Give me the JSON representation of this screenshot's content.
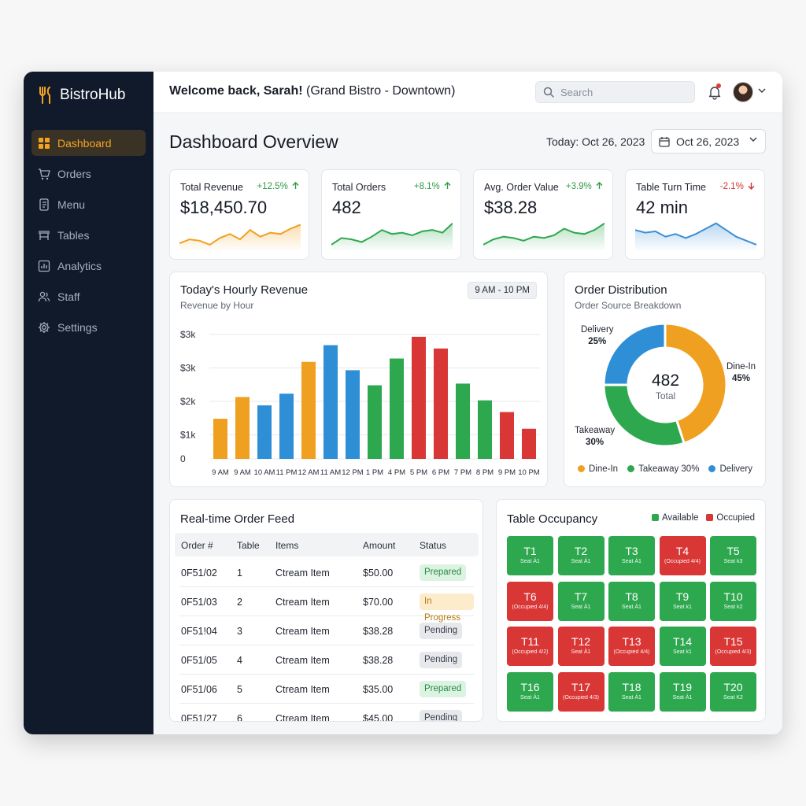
{
  "app": {
    "name": "BistroHub"
  },
  "sidebar": {
    "items": [
      {
        "label": "Dashboard",
        "icon": "dashboard-icon",
        "active": true
      },
      {
        "label": "Orders",
        "icon": "cart-icon",
        "active": false
      },
      {
        "label": "Menu",
        "icon": "menu-book-icon",
        "active": false
      },
      {
        "label": "Tables",
        "icon": "table-icon",
        "active": false
      },
      {
        "label": "Analytics",
        "icon": "analytics-icon",
        "active": false
      },
      {
        "label": "Staff",
        "icon": "staff-icon",
        "active": false
      },
      {
        "label": "Settings",
        "icon": "gear-icon",
        "active": false
      }
    ]
  },
  "header": {
    "welcome_bold": "Welcome back, Sarah!",
    "welcome_rest": " (Grand Bistro - Downtown)",
    "search_placeholder": "Search"
  },
  "page": {
    "title": "Dashboard Overview",
    "today_label": "Today: Oct 26, 2023",
    "date_value": "Oct 26, 2023"
  },
  "kpis": [
    {
      "title": "Total Revenue",
      "value": "$18,450.70",
      "delta": "+12.5%",
      "trend": "up",
      "color": "#f0a020"
    },
    {
      "title": "Total Orders",
      "value": "482",
      "delta": "+8.1%",
      "trend": "up",
      "color": "#2ea84f"
    },
    {
      "title": "Avg. Order Value",
      "value": "$38.28",
      "delta": "+3.9%",
      "trend": "up",
      "color": "#2ea84f"
    },
    {
      "title": "Table Turn Time",
      "value": "42 min",
      "delta": "-2.1%",
      "trend": "down",
      "color": "#3b8fd4"
    }
  ],
  "revenue": {
    "title": "Today's Hourly Revenue",
    "subtitle": "Revenue by Hour",
    "range": "9 AM - 10 PM"
  },
  "distribution": {
    "title": "Order Distribution",
    "subtitle": "Order Source Breakdown",
    "center_value": "482",
    "center_label": "Total",
    "labels": {
      "delivery_name": "Delivery",
      "delivery_pct": "25%",
      "dinein_name": "Dine-In",
      "dinein_pct": "45%",
      "takeaway_name": "Takeaway",
      "takeaway_pct": "30%"
    },
    "legend": [
      "Dine-In",
      "Takeaway 30%",
      "Delivery"
    ]
  },
  "chart_data": [
    {
      "type": "bar",
      "title": "Today's Hourly Revenue",
      "subtitle": "Revenue by Hour",
      "categories": [
        "9 AM",
        "9 AM",
        "10 AM",
        "11 PM",
        "12 AM",
        "11 AM",
        "12 PM",
        "1 PM",
        "4 PM",
        "5 PM",
        "6 PM",
        "7 PM",
        "8 PM",
        "9 PM",
        "10 PM"
      ],
      "values": [
        1200,
        1850,
        1600,
        1950,
        2900,
        3400,
        2650,
        2200,
        3000,
        3650,
        3300,
        2250,
        1750,
        1400,
        900
      ],
      "colors": [
        "#f0a020",
        "#f0a020",
        "#2f8fd6",
        "#2f8fd6",
        "#f0a020",
        "#2f8fd6",
        "#2f8fd6",
        "#2ea84f",
        "#2ea84f",
        "#d93636",
        "#d93636",
        "#2ea84f",
        "#2ea84f",
        "#d93636",
        "#d93636"
      ],
      "y_ticks": [
        "$3k",
        "$3k",
        "$2k",
        "$1k",
        "0"
      ],
      "ylim": [
        0,
        4000
      ],
      "grid": true
    },
    {
      "type": "pie",
      "title": "Order Distribution",
      "subtitle": "Order Source Breakdown",
      "categories": [
        "Dine-In",
        "Takeaway",
        "Delivery"
      ],
      "values": [
        45,
        30,
        25
      ],
      "colors": [
        "#f0a020",
        "#2ea84f",
        "#2f8fd6"
      ]
    }
  ],
  "orders": {
    "title": "Real-time Order Feed",
    "columns": [
      "Order #",
      "Table",
      "Items",
      "Amount",
      "Status"
    ],
    "rows": [
      {
        "order": "0F51/02",
        "table": "1",
        "items": "Ctream Item",
        "amount": "$50.00",
        "status": "Prepared"
      },
      {
        "order": "0F51/03",
        "table": "2",
        "items": "Ctream Item",
        "amount": "$70.00",
        "status": "In Progress"
      },
      {
        "order": "0F51!04",
        "table": "3",
        "items": "Ctream Item",
        "amount": "$38.28",
        "status": "Pending"
      },
      {
        "order": "0F51/05",
        "table": "4",
        "items": "Ctream Item",
        "amount": "$38.28",
        "status": "Pending"
      },
      {
        "order": "0F51/06",
        "table": "5",
        "items": "Ctream Item",
        "amount": "$35.00",
        "status": "Prepared"
      },
      {
        "order": "0F51/27",
        "table": "6",
        "items": "Ctream Item",
        "amount": "$45.00",
        "status": "Pending"
      }
    ],
    "status_colors": {
      "Prepared": {
        "bg": "#dcf3e2",
        "fg": "#2a8a44"
      },
      "In Progress": {
        "bg": "#fdeccb",
        "fg": "#b8790e"
      },
      "Pending": {
        "bg": "#e6e8ec",
        "fg": "#3a3f4a"
      }
    }
  },
  "occupancy": {
    "title": "Table Occupancy",
    "legend_available": "Available",
    "legend_occupied": "Occupied",
    "color_available": "#2ea84f",
    "color_occupied": "#d93636",
    "tables": [
      {
        "name": "T1",
        "sub": "Seat Á1",
        "state": "available"
      },
      {
        "name": "T2",
        "sub": "Seat Á1",
        "state": "available"
      },
      {
        "name": "T3",
        "sub": "Seat Á1",
        "state": "available"
      },
      {
        "name": "T4",
        "sub": "(Occupied 4/4)",
        "state": "occupied"
      },
      {
        "name": "T5",
        "sub": "Seat k3",
        "state": "available"
      },
      {
        "name": "T6",
        "sub": "(Occupied 4/4)",
        "state": "occupied"
      },
      {
        "name": "T7",
        "sub": "Seat Á1",
        "state": "available"
      },
      {
        "name": "T8",
        "sub": "Seat Á1",
        "state": "available"
      },
      {
        "name": "T9",
        "sub": "Seat k1",
        "state": "available"
      },
      {
        "name": "T10",
        "sub": "Seat k2",
        "state": "available"
      },
      {
        "name": "T11",
        "sub": "(Occupied 4/2)",
        "state": "occupied"
      },
      {
        "name": "T12",
        "sub": "Seat Á1",
        "state": "occupied"
      },
      {
        "name": "T13",
        "sub": "(Occupied 4/4)",
        "state": "occupied"
      },
      {
        "name": "T14",
        "sub": "Seat k1",
        "state": "available"
      },
      {
        "name": "T15",
        "sub": "(Occupied 4/3)",
        "state": "occupied"
      },
      {
        "name": "T16",
        "sub": "Seat Á1",
        "state": "available"
      },
      {
        "name": "T17",
        "sub": "(Occupied 4/3)",
        "state": "occupied"
      },
      {
        "name": "T18",
        "sub": "Seat Á1",
        "state": "available"
      },
      {
        "name": "T19",
        "sub": "Seat Á1",
        "state": "available"
      },
      {
        "name": "T20",
        "sub": "Seat K2",
        "state": "available"
      }
    ]
  }
}
